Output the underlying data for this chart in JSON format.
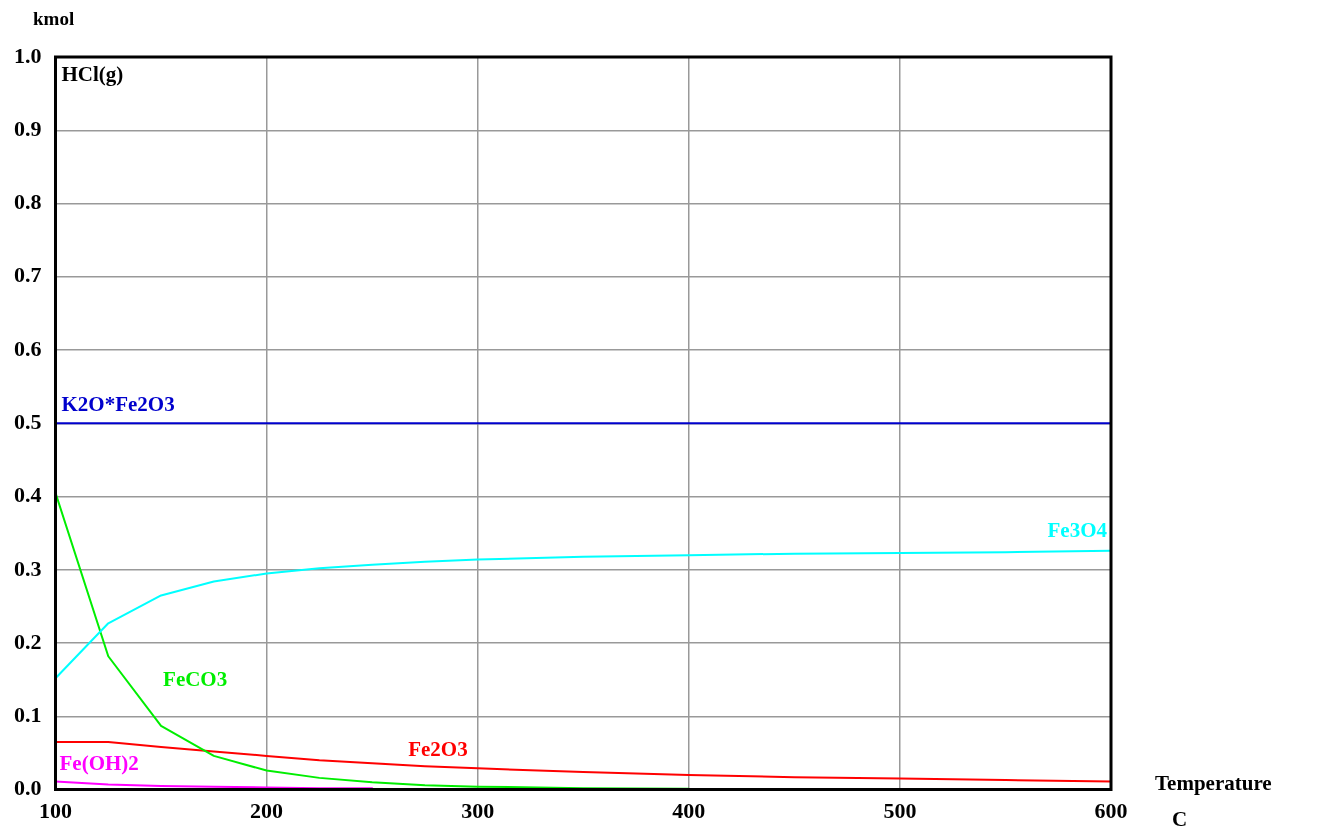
{
  "chart_data": {
    "type": "line",
    "xlabel": "Temperature C",
    "ylabel": "kmol",
    "x": [
      100,
      125,
      150,
      175,
      200,
      225,
      250,
      275,
      300,
      350,
      400,
      450,
      500,
      550,
      600
    ],
    "series": [
      {
        "name": "K2O*Fe2O3",
        "color": "#0000cc",
        "values": [
          0.5,
          0.5,
          0.5,
          0.5,
          0.5,
          0.5,
          0.5,
          0.5,
          0.5,
          0.5,
          0.5,
          0.5,
          0.5,
          0.5,
          0.5
        ]
      },
      {
        "name": "Fe3O4",
        "color": "#00ffff",
        "values": [
          0.152,
          0.227,
          0.265,
          0.284,
          0.295,
          0.302,
          0.307,
          0.311,
          0.314,
          0.318,
          0.32,
          0.322,
          0.323,
          0.324,
          0.326
        ]
      },
      {
        "name": "FeCO3",
        "color": "#00ee00",
        "values": [
          0.405,
          0.182,
          0.087,
          0.046,
          0.026,
          0.016,
          0.01,
          0.006,
          0.004,
          0.002,
          0.001,
          null,
          null,
          null,
          null
        ]
      },
      {
        "name": "Fe2O3",
        "color": "#ff0000",
        "values": [
          0.065,
          0.065,
          0.058,
          0.052,
          0.046,
          0.04,
          0.036,
          0.032,
          0.029,
          0.024,
          0.02,
          0.017,
          0.015,
          0.013,
          0.011
        ]
      },
      {
        "name": "Fe(OH)2",
        "color": "#ff00ff",
        "values": [
          0.011,
          0.007,
          0.005,
          0.004,
          0.003,
          0.002,
          0.002,
          null,
          null,
          null,
          null,
          null,
          null,
          null,
          null
        ]
      }
    ],
    "annotations": [
      "HCl(g)"
    ],
    "xlim": [
      100,
      600
    ],
    "xticks": [
      100,
      200,
      300,
      400,
      500,
      600
    ],
    "ylim": [
      0,
      1
    ],
    "yticks": [
      {
        "value": 0,
        "label": "0.0"
      },
      0.1,
      0.2,
      0.3,
      0.4,
      0.5,
      0.6,
      0.7,
      0.8,
      0.9,
      {
        "value": 1,
        "label": "1.0"
      }
    ],
    "grid": true,
    "legend": false,
    "marker": "none",
    "line_style": "solid"
  }
}
